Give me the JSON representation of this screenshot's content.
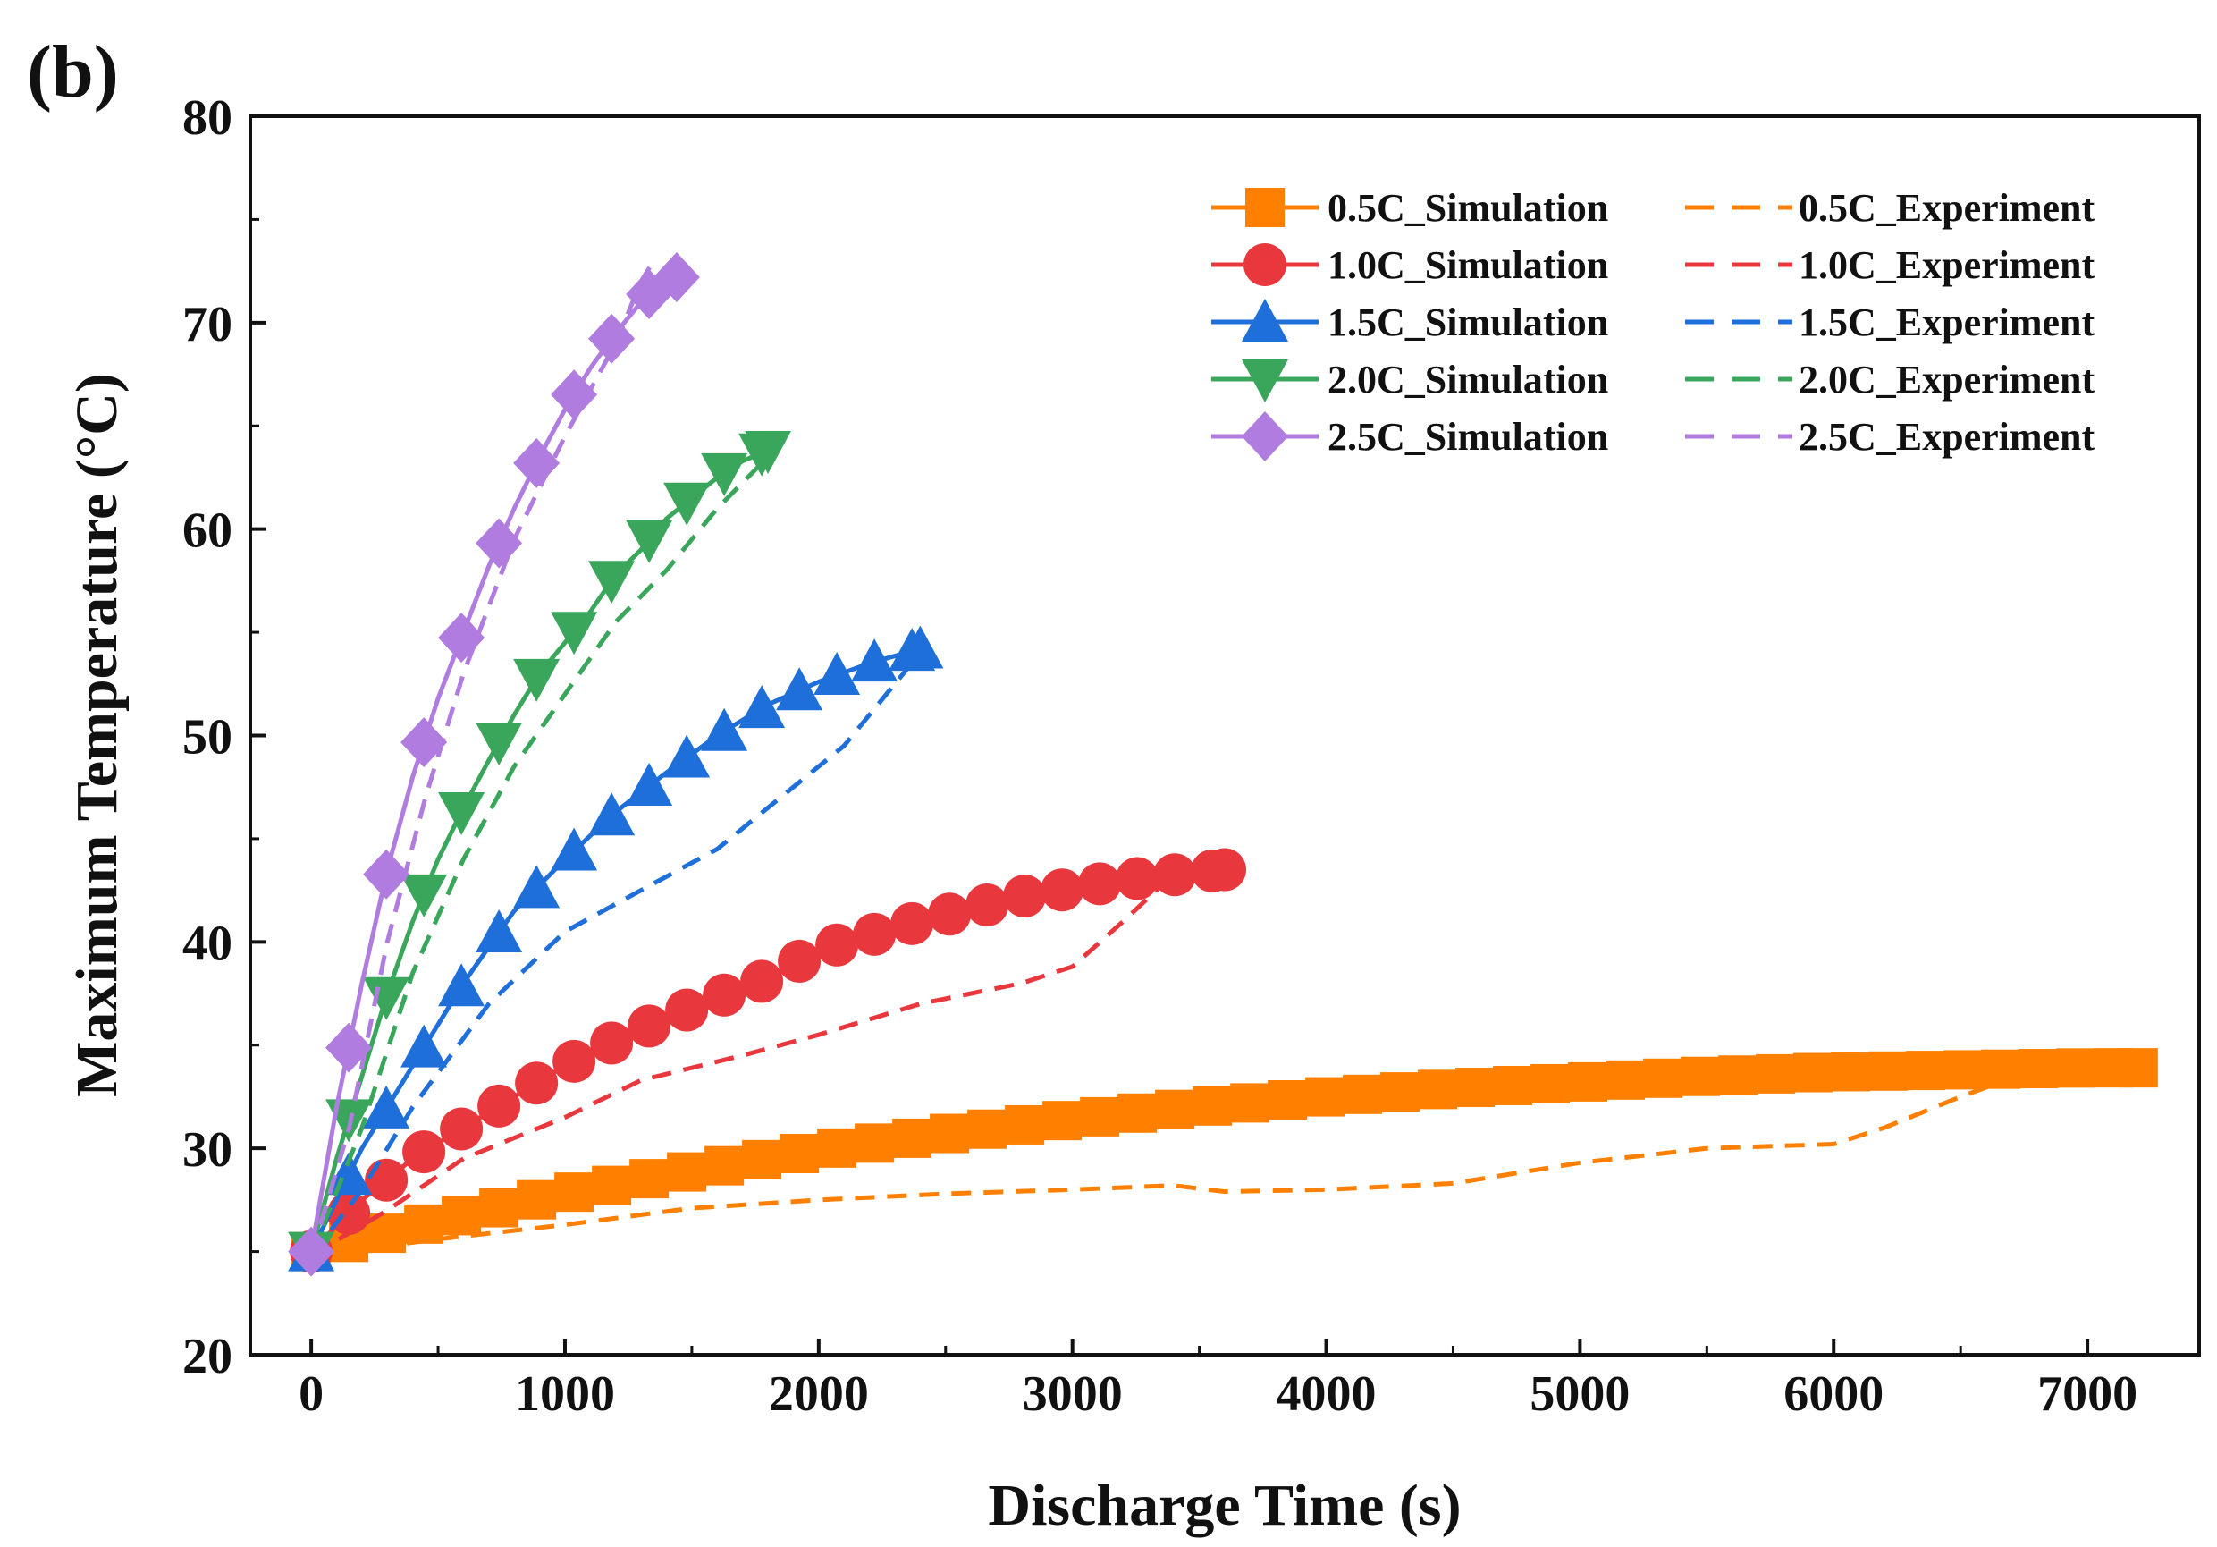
{
  "panel_label": "(b)",
  "chart_data": {
    "type": "line",
    "title": "",
    "xlabel": "Discharge Time (s)",
    "ylabel": "Maximum Temperature (°C)",
    "xlim": [
      -240,
      7440
    ],
    "ylim": [
      20,
      80
    ],
    "xticks": [
      0,
      1000,
      2000,
      3000,
      4000,
      5000,
      6000,
      7000
    ],
    "yticks": [
      20,
      30,
      40,
      50,
      60,
      70,
      80
    ],
    "xtick_labels": [
      "0",
      "1000",
      "2000",
      "3000",
      "4000",
      "5000",
      "6000",
      "7000"
    ],
    "ytick_labels": [
      "20",
      "30",
      "40",
      "50",
      "60",
      "70",
      "80"
    ],
    "legend_position": "top-right",
    "series": [
      {
        "name": "0.5C_Simulation",
        "rate": "0.5C",
        "kind": "simulation",
        "marker": "square",
        "color": "#FF8000",
        "end_time": 7200,
        "points": [
          [
            0,
            25
          ],
          [
            500,
            26.5
          ],
          [
            1000,
            27.8
          ],
          [
            1500,
            28.9
          ],
          [
            2000,
            29.9
          ],
          [
            2500,
            30.7
          ],
          [
            3000,
            31.4
          ],
          [
            3500,
            32
          ],
          [
            4000,
            32.5
          ],
          [
            4500,
            32.9
          ],
          [
            5000,
            33.2
          ],
          [
            5500,
            33.5
          ],
          [
            6000,
            33.7
          ],
          [
            6500,
            33.8
          ],
          [
            7000,
            33.9
          ],
          [
            7200,
            33.9
          ]
        ]
      },
      {
        "name": "0.5C_Experiment",
        "rate": "0.5C",
        "kind": "experiment",
        "color": "#FF8000",
        "points": [
          [
            0,
            24.8
          ],
          [
            500,
            25.6
          ],
          [
            1000,
            26.3
          ],
          [
            1500,
            27.1
          ],
          [
            2000,
            27.5
          ],
          [
            2500,
            27.8
          ],
          [
            3000,
            28
          ],
          [
            3400,
            28.2
          ],
          [
            3600,
            27.9
          ],
          [
            4000,
            28
          ],
          [
            4500,
            28.3
          ],
          [
            5000,
            29.3
          ],
          [
            5500,
            30
          ],
          [
            6000,
            30.2
          ],
          [
            6200,
            31
          ],
          [
            6500,
            32.5
          ],
          [
            6700,
            33.4
          ],
          [
            7000,
            33.9
          ]
        ]
      },
      {
        "name": "1.0C_Simulation",
        "rate": "1.0C",
        "kind": "simulation",
        "marker": "circle",
        "color": "#E8383D",
        "end_time": 3600,
        "points": [
          [
            0,
            25
          ],
          [
            200,
            27.5
          ],
          [
            400,
            29.5
          ],
          [
            600,
            31
          ],
          [
            800,
            32.5
          ],
          [
            1000,
            34
          ],
          [
            1200,
            35.2
          ],
          [
            1400,
            36.3
          ],
          [
            1600,
            37.3
          ],
          [
            1800,
            38.2
          ],
          [
            2000,
            39.6
          ],
          [
            2400,
            41
          ],
          [
            2800,
            42.2
          ],
          [
            3200,
            43
          ],
          [
            3600,
            43.5
          ]
        ]
      },
      {
        "name": "1.0C_Experiment",
        "rate": "1.0C",
        "kind": "experiment",
        "color": "#E8383D",
        "points": [
          [
            0,
            24.8
          ],
          [
            300,
            27
          ],
          [
            600,
            29.5
          ],
          [
            1000,
            31.5
          ],
          [
            1300,
            33.3
          ],
          [
            1700,
            34.5
          ],
          [
            2000,
            35.5
          ],
          [
            2400,
            37
          ],
          [
            2800,
            38
          ],
          [
            3000,
            38.8
          ],
          [
            3200,
            41
          ],
          [
            3400,
            43.3
          ],
          [
            3500,
            43.5
          ]
        ]
      },
      {
        "name": "1.5C_Simulation",
        "rate": "1.5C",
        "kind": "simulation",
        "marker": "triangle-up",
        "color": "#1E6FD9",
        "end_time": 2400,
        "points": [
          [
            0,
            25
          ],
          [
            100,
            27.5
          ],
          [
            200,
            30
          ],
          [
            400,
            34
          ],
          [
            600,
            38
          ],
          [
            800,
            41.5
          ],
          [
            1000,
            44
          ],
          [
            1200,
            46.3
          ],
          [
            1400,
            48.2
          ],
          [
            1600,
            50
          ],
          [
            1800,
            51.5
          ],
          [
            2000,
            52.6
          ],
          [
            2200,
            53.5
          ],
          [
            2400,
            54.2
          ]
        ]
      },
      {
        "name": "1.5C_Experiment",
        "rate": "1.5C",
        "kind": "experiment",
        "color": "#1E6FD9",
        "points": [
          [
            0,
            24.8
          ],
          [
            200,
            28
          ],
          [
            400,
            32
          ],
          [
            700,
            37
          ],
          [
            1000,
            40.5
          ],
          [
            1300,
            42.5
          ],
          [
            1600,
            44.5
          ],
          [
            1900,
            47.5
          ],
          [
            2100,
            49.5
          ],
          [
            2300,
            52.5
          ],
          [
            2400,
            54
          ]
        ]
      },
      {
        "name": "2.0C_Simulation",
        "rate": "2.0C",
        "kind": "simulation",
        "marker": "triangle-down",
        "color": "#3AA65B",
        "end_time": 1800,
        "points": [
          [
            0,
            25
          ],
          [
            100,
            29.5
          ],
          [
            200,
            33.5
          ],
          [
            300,
            37.5
          ],
          [
            400,
            41
          ],
          [
            500,
            44
          ],
          [
            600,
            46.5
          ],
          [
            700,
            48.8
          ],
          [
            800,
            51
          ],
          [
            900,
            53
          ],
          [
            1000,
            54.5
          ],
          [
            1100,
            56
          ],
          [
            1200,
            57.8
          ],
          [
            1300,
            59
          ],
          [
            1400,
            60.5
          ],
          [
            1500,
            61.5
          ],
          [
            1600,
            62.5
          ],
          [
            1700,
            63.3
          ],
          [
            1800,
            63.8
          ]
        ]
      },
      {
        "name": "2.0C_Experiment",
        "rate": "2.0C",
        "kind": "experiment",
        "color": "#3AA65B",
        "points": [
          [
            0,
            24.8
          ],
          [
            200,
            31
          ],
          [
            400,
            38.5
          ],
          [
            600,
            44
          ],
          [
            800,
            48.5
          ],
          [
            1000,
            52
          ],
          [
            1200,
            55.5
          ],
          [
            1400,
            58
          ],
          [
            1600,
            61
          ],
          [
            1800,
            63.5
          ]
        ]
      },
      {
        "name": "2.5C_Simulation",
        "rate": "2.5C",
        "kind": "simulation",
        "marker": "diamond",
        "color": "#B07CE0",
        "end_time": 1440,
        "points": [
          [
            0,
            25
          ],
          [
            100,
            32
          ],
          [
            200,
            38
          ],
          [
            300,
            43.5
          ],
          [
            400,
            48
          ],
          [
            500,
            51.8
          ],
          [
            600,
            55
          ],
          [
            700,
            58.2
          ],
          [
            800,
            61
          ],
          [
            900,
            63.5
          ],
          [
            1000,
            65.8
          ],
          [
            1100,
            67.8
          ],
          [
            1200,
            69.5
          ],
          [
            1300,
            71
          ],
          [
            1400,
            72.2
          ]
        ]
      },
      {
        "name": "2.5C_Experiment",
        "rate": "2.5C",
        "kind": "experiment",
        "color": "#B07CE0",
        "points": [
          [
            0,
            24.8
          ],
          [
            150,
            31
          ],
          [
            300,
            40
          ],
          [
            450,
            47
          ],
          [
            600,
            53
          ],
          [
            800,
            59.5
          ],
          [
            1000,
            64.5
          ],
          [
            1200,
            69
          ],
          [
            1300,
            72
          ],
          [
            1350,
            73
          ]
        ]
      }
    ]
  }
}
